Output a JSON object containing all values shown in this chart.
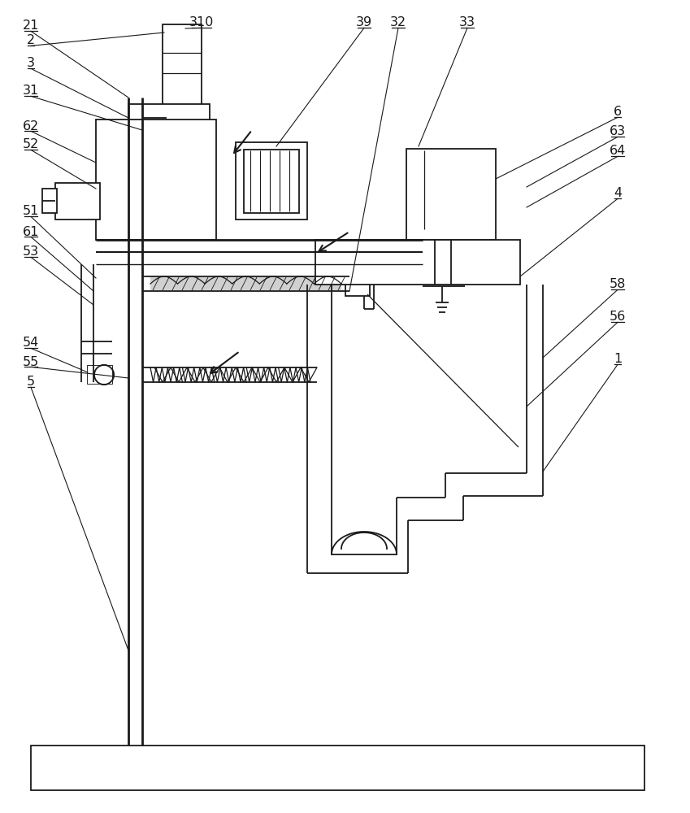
{
  "bg_color": "#ffffff",
  "line_color": "#1a1a1a",
  "lw": 1.3,
  "fig_w": 8.49,
  "fig_h": 10.0,
  "labels_left": [
    [
      "21",
      38,
      968
    ],
    [
      "2",
      38,
      950
    ],
    [
      "3",
      38,
      922
    ],
    [
      "31",
      38,
      888
    ],
    [
      "62",
      38,
      845
    ],
    [
      "52",
      38,
      822
    ],
    [
      "51",
      38,
      740
    ],
    [
      "61",
      38,
      715
    ],
    [
      "53",
      38,
      690
    ],
    [
      "54",
      38,
      578
    ],
    [
      "55",
      38,
      555
    ],
    [
      "5",
      38,
      530
    ]
  ],
  "labels_top": [
    [
      "310",
      248,
      972
    ],
    [
      "39",
      448,
      972
    ],
    [
      "32",
      488,
      972
    ],
    [
      "33",
      575,
      972
    ]
  ],
  "labels_right": [
    [
      "6",
      760,
      862
    ],
    [
      "63",
      760,
      838
    ],
    [
      "64",
      760,
      814
    ],
    [
      "4",
      760,
      762
    ],
    [
      "58",
      760,
      650
    ],
    [
      "56",
      760,
      610
    ],
    [
      "1",
      760,
      558
    ]
  ]
}
